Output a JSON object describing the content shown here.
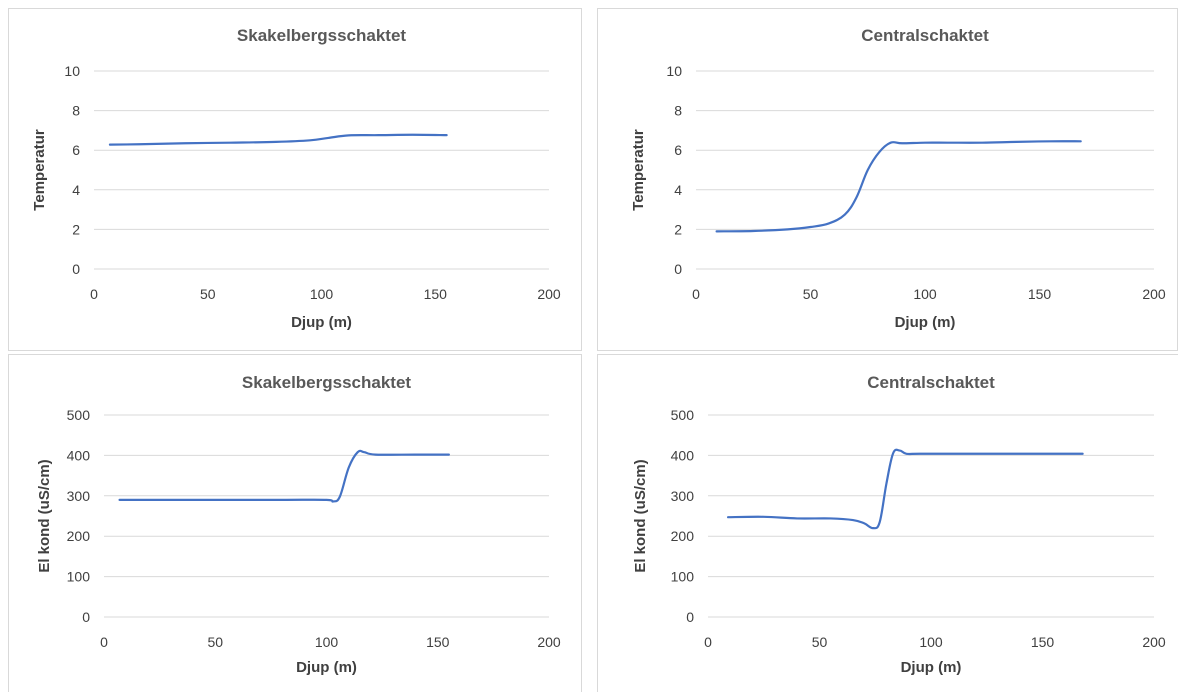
{
  "colors": {
    "series": "#4472c4",
    "grid": "#d9d9d9",
    "text": "#404040",
    "title": "#595959"
  },
  "chart_data": [
    {
      "type": "line",
      "title": "Skakelbergsschaktet",
      "xlabel": "Djup (m)",
      "ylabel": "Temperatur",
      "xlim": [
        0,
        200
      ],
      "ylim": [
        0,
        10
      ],
      "xticks": [
        "0",
        "50",
        "100",
        "150",
        "200"
      ],
      "yticks": [
        "0",
        "2",
        "4",
        "6",
        "8",
        "10"
      ],
      "grid": "horizontal",
      "legend": "none",
      "series": [
        {
          "x": [
            7,
            20,
            40,
            60,
            80,
            95,
            103,
            112,
            125,
            140,
            155
          ],
          "y": [
            6.28,
            6.3,
            6.35,
            6.38,
            6.42,
            6.5,
            6.62,
            6.75,
            6.76,
            6.78,
            6.76
          ]
        }
      ]
    },
    {
      "type": "line",
      "title": "Centralschaktet",
      "xlabel": "Djup (m)",
      "ylabel": "Temperatur",
      "xlim": [
        0,
        200
      ],
      "ylim": [
        0,
        10
      ],
      "xticks": [
        "0",
        "50",
        "100",
        "150",
        "200"
      ],
      "yticks": [
        "0",
        "2",
        "4",
        "6",
        "8",
        "10"
      ],
      "grid": "horizontal",
      "legend": "none",
      "series": [
        {
          "x": [
            9,
            25,
            40,
            50,
            58,
            65,
            70,
            75,
            80,
            85,
            90,
            100,
            110,
            125,
            140,
            155,
            168
          ],
          "y": [
            1.9,
            1.92,
            2.0,
            2.12,
            2.3,
            2.75,
            3.6,
            5.0,
            5.9,
            6.38,
            6.35,
            6.38,
            6.38,
            6.38,
            6.42,
            6.45,
            6.45
          ]
        }
      ]
    },
    {
      "type": "line",
      "title": "Skakelbergsschaktet",
      "xlabel": "Djup (m)",
      "ylabel": "El kond (uS/cm)",
      "xlim": [
        0,
        200
      ],
      "ylim": [
        0,
        500
      ],
      "xticks": [
        "0",
        "50",
        "100",
        "150",
        "200"
      ],
      "yticks": [
        "0",
        "100",
        "200",
        "300",
        "400",
        "500"
      ],
      "grid": "horizontal",
      "legend": "none",
      "series": [
        {
          "x": [
            7,
            50,
            80,
            100,
            103,
            106,
            110,
            114,
            117,
            122,
            140,
            155
          ],
          "y": [
            290,
            290,
            290,
            290,
            286,
            298,
            370,
            408,
            408,
            402,
            402,
            402
          ]
        }
      ]
    },
    {
      "type": "line",
      "title": "Centralschaktet",
      "xlabel": "Djup (m)",
      "ylabel": "El kond (uS/cm)",
      "xlim": [
        0,
        200
      ],
      "ylim": [
        0,
        500
      ],
      "xticks": [
        "0",
        "50",
        "100",
        "150",
        "200"
      ],
      "yticks": [
        "0",
        "100",
        "200",
        "300",
        "400",
        "500"
      ],
      "grid": "horizontal",
      "legend": "none",
      "series": [
        {
          "x": [
            9,
            25,
            40,
            55,
            65,
            70,
            74,
            77,
            80,
            83,
            86,
            89,
            95,
            120,
            150,
            168
          ],
          "y": [
            247,
            248,
            244,
            244,
            240,
            232,
            220,
            235,
            330,
            405,
            412,
            404,
            404,
            404,
            404,
            404
          ]
        }
      ]
    }
  ]
}
